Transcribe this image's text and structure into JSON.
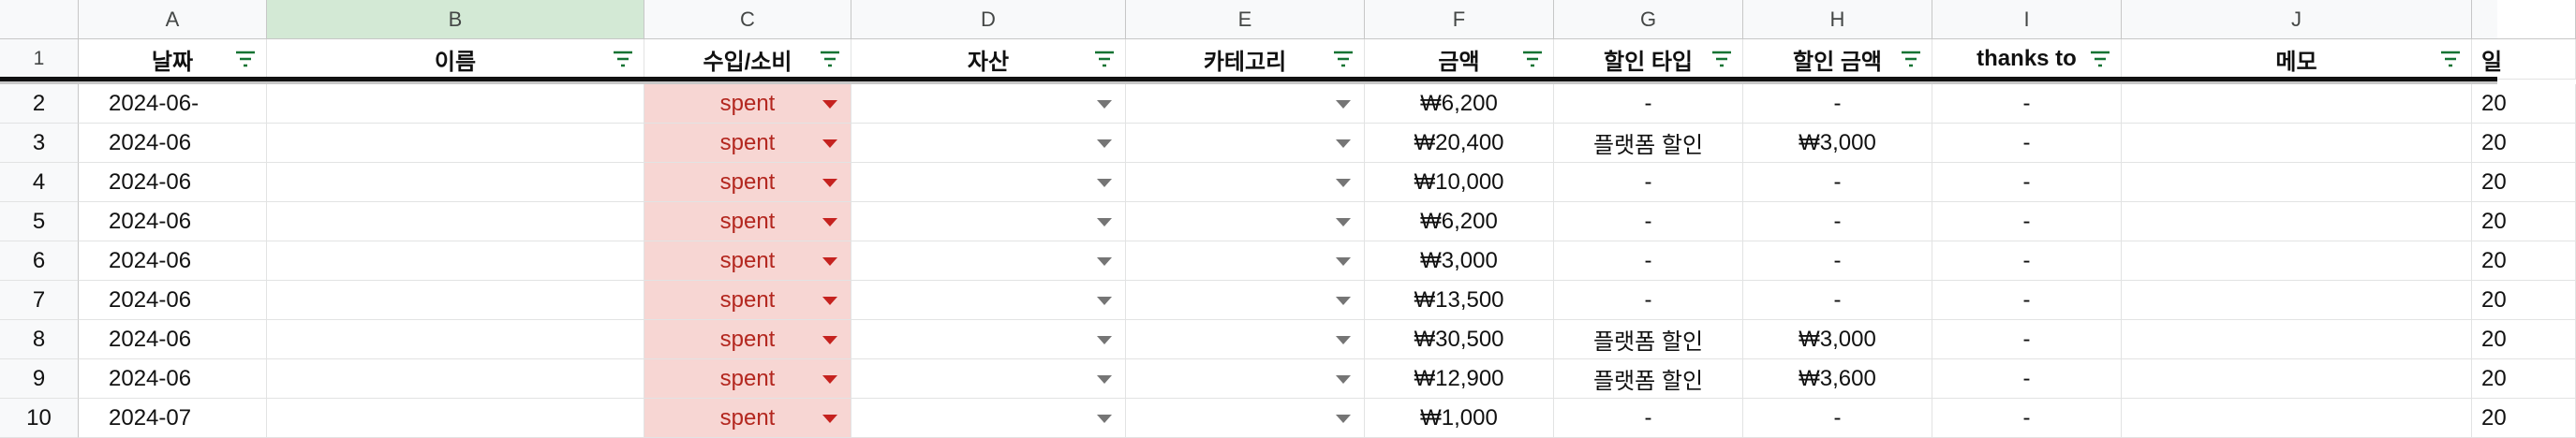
{
  "columns": [
    "A",
    "B",
    "C",
    "D",
    "E",
    "F",
    "G",
    "H",
    "I",
    "J"
  ],
  "header_row_number": "1",
  "headers": {
    "A": "날짜",
    "B": "이름",
    "C": "수입/소비",
    "D": "자산",
    "E": "카테고리",
    "F": "금액",
    "G": "할인 타입",
    "H": "할인 금액",
    "I": "thanks to",
    "J": "메모",
    "K_partial": "일"
  },
  "rows": [
    {
      "num": "2",
      "date": "2024-06-",
      "type": "spent",
      "amount": "₩6,200",
      "discount_type": "-",
      "discount_amount": "-",
      "thanks_to": "-",
      "next": "20"
    },
    {
      "num": "3",
      "date": "2024-06",
      "type": "spent",
      "amount": "₩20,400",
      "discount_type": "플랫폼 할인",
      "discount_amount": "₩3,000",
      "thanks_to": "-",
      "next": "20"
    },
    {
      "num": "4",
      "date": "2024-06",
      "type": "spent",
      "amount": "₩10,000",
      "discount_type": "-",
      "discount_amount": "-",
      "thanks_to": "-",
      "next": "20"
    },
    {
      "num": "5",
      "date": "2024-06",
      "type": "spent",
      "amount": "₩6,200",
      "discount_type": "-",
      "discount_amount": "-",
      "thanks_to": "-",
      "next": "20"
    },
    {
      "num": "6",
      "date": "2024-06",
      "type": "spent",
      "amount": "₩3,000",
      "discount_type": "-",
      "discount_amount": "-",
      "thanks_to": "-",
      "next": "20"
    },
    {
      "num": "7",
      "date": "2024-06",
      "type": "spent",
      "amount": "₩13,500",
      "discount_type": "-",
      "discount_amount": "-",
      "thanks_to": "-",
      "next": "20"
    },
    {
      "num": "8",
      "date": "2024-06",
      "type": "spent",
      "amount": "₩30,500",
      "discount_type": "플랫폼 할인",
      "discount_amount": "₩3,000",
      "thanks_to": "-",
      "next": "20"
    },
    {
      "num": "9",
      "date": "2024-06",
      "type": "spent",
      "amount": "₩12,900",
      "discount_type": "플랫폼 할인",
      "discount_amount": "₩3,600",
      "thanks_to": "-",
      "next": "20"
    },
    {
      "num": "10",
      "date": "2024-07",
      "type": "spent",
      "amount": "₩1,000",
      "discount_type": "-",
      "discount_amount": "-",
      "thanks_to": "-",
      "next": "20"
    }
  ],
  "colors": {
    "spent_bg": "#f7d6d3",
    "spent_text": "#b3261e",
    "selected_col_bg": "#d3e9d5"
  }
}
